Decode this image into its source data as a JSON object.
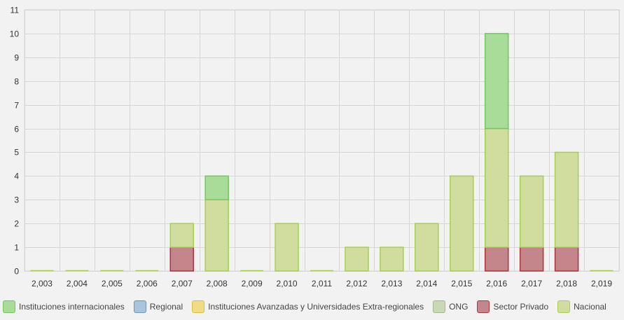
{
  "chart_data": {
    "type": "bar",
    "stacked": true,
    "title": "",
    "xlabel": "",
    "ylabel": "",
    "ylim": [
      0,
      11
    ],
    "grid": true,
    "legend_position": "bottom",
    "categories": [
      "2,003",
      "2,004",
      "2,005",
      "2,006",
      "2,007",
      "2,008",
      "2,009",
      "2,010",
      "2,011",
      "2,012",
      "2,013",
      "2,014",
      "2,015",
      "2,016",
      "2,017",
      "2,018",
      "2,019"
    ],
    "y_ticks": [
      "0",
      "1",
      "2",
      "3",
      "4",
      "5",
      "6",
      "7",
      "8",
      "9",
      "10",
      "11"
    ],
    "series": [
      {
        "name": "Sector Privado",
        "fill": "#c4868a",
        "stroke": "#b0323c",
        "values": [
          0,
          0,
          0,
          0,
          1,
          0,
          0,
          0,
          0,
          0,
          0,
          0,
          0,
          1,
          1,
          1,
          0
        ]
      },
      {
        "name": "Nacional",
        "fill": "#d1dd9e",
        "stroke": "#a6cf52",
        "values": [
          0,
          0,
          0,
          0,
          1,
          3,
          0,
          2,
          0,
          1,
          1,
          2,
          4,
          5,
          3,
          4,
          0
        ]
      },
      {
        "name": "ONG",
        "fill": "#cbd8b8",
        "stroke": "#9fb98a",
        "values": [
          0,
          0,
          0,
          0,
          0,
          0,
          0,
          0,
          0,
          0,
          0,
          0,
          0,
          0,
          0,
          0,
          0
        ]
      },
      {
        "name": "Instituciones Avanzadas y Universidades Extra-regionales",
        "fill": "#f0dc86",
        "stroke": "#d8bf3e",
        "values": [
          0,
          0,
          0,
          0,
          0,
          0,
          0,
          0,
          0,
          0,
          0,
          0,
          0,
          0,
          0,
          0,
          0
        ]
      },
      {
        "name": "Regional",
        "fill": "#a9c5de",
        "stroke": "#6f95bd",
        "values": [
          0,
          0,
          0,
          0,
          0,
          0,
          0,
          0,
          0,
          0,
          0,
          0,
          0,
          0,
          0,
          0,
          0
        ]
      },
      {
        "name": "Instituciones internacionales",
        "fill": "#a8dc98",
        "stroke": "#72c85d",
        "values": [
          0,
          0,
          0,
          0,
          0,
          1,
          0,
          0,
          0,
          0,
          0,
          0,
          0,
          4,
          0,
          0,
          0
        ]
      }
    ],
    "legend_order": [
      "Instituciones internacionales",
      "Regional",
      "Instituciones Avanzadas y Universidades Extra-regionales",
      "ONG",
      "Sector Privado",
      "Nacional"
    ]
  }
}
